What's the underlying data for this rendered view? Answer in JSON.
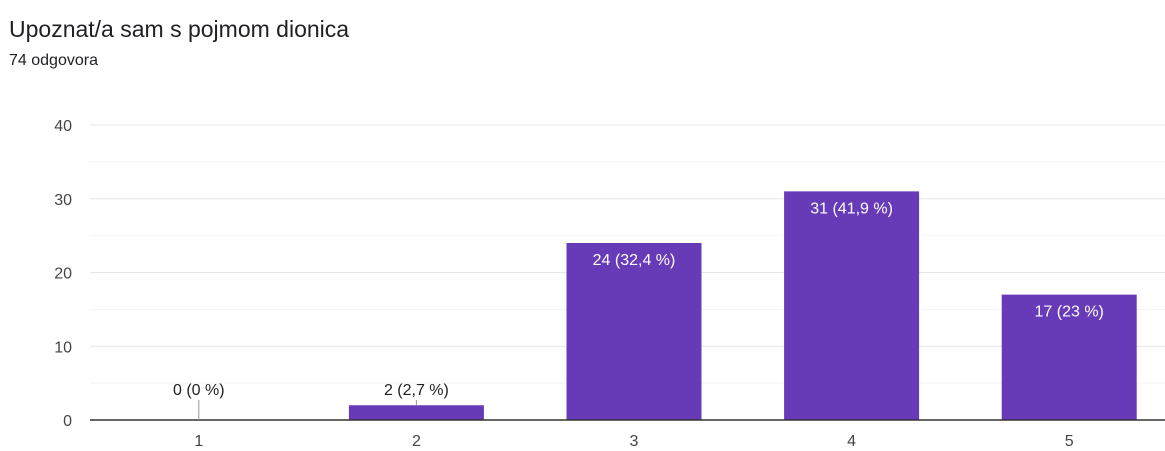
{
  "chart_data": {
    "type": "bar",
    "title": "Upoznat/a sam s pojmom dionica",
    "subtitle": "74 odgovora",
    "categories": [
      "1",
      "2",
      "3",
      "4",
      "5"
    ],
    "values": [
      0,
      2,
      24,
      31,
      17
    ],
    "data_labels": [
      "0 (0 %)",
      "2 (2,7 %)",
      "24 (32,4 %)",
      "31 (41,9 %)",
      "17 (23 %)"
    ],
    "y_ticks": [
      "0",
      "10",
      "20",
      "30",
      "40"
    ],
    "ylim": [
      0,
      40
    ],
    "grid": true,
    "legend": "none",
    "colors": {
      "bar": "#673ab7",
      "grid_major": "#e6e6e6",
      "grid_minor": "#f3f3f3",
      "axis": "#333333",
      "label_inside": "#ffffff",
      "label_outside": "#202124"
    }
  }
}
